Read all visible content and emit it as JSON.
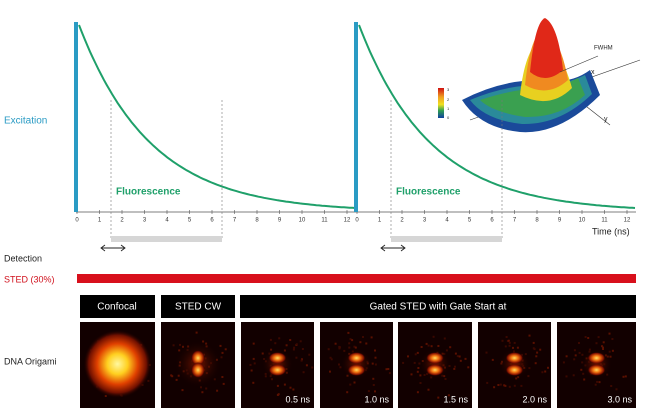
{
  "labels": {
    "excitation": "Excitation",
    "fluorescence": "Fluorescence",
    "detection": "Detection",
    "sted": "STED (30%)",
    "time_axis": "Time (ns)",
    "dna_origami": "DNA Origami"
  },
  "axis": {
    "ticks": [
      0,
      1,
      2,
      3,
      4,
      5,
      6,
      7,
      8,
      9,
      10,
      11,
      12
    ]
  },
  "inset": {
    "fwhm": "FWHM",
    "x": "x",
    "y": "y",
    "colorbar": [
      3,
      2,
      1,
      0
    ]
  },
  "panels": {
    "headers": [
      "Confocal",
      "STED CW",
      "Gated STED with Gate Start at"
    ],
    "gate_starts": [
      "0.5 ns",
      "1.0 ns",
      "1.5 ns",
      "2.0 ns",
      "3.0 ns"
    ]
  }
}
